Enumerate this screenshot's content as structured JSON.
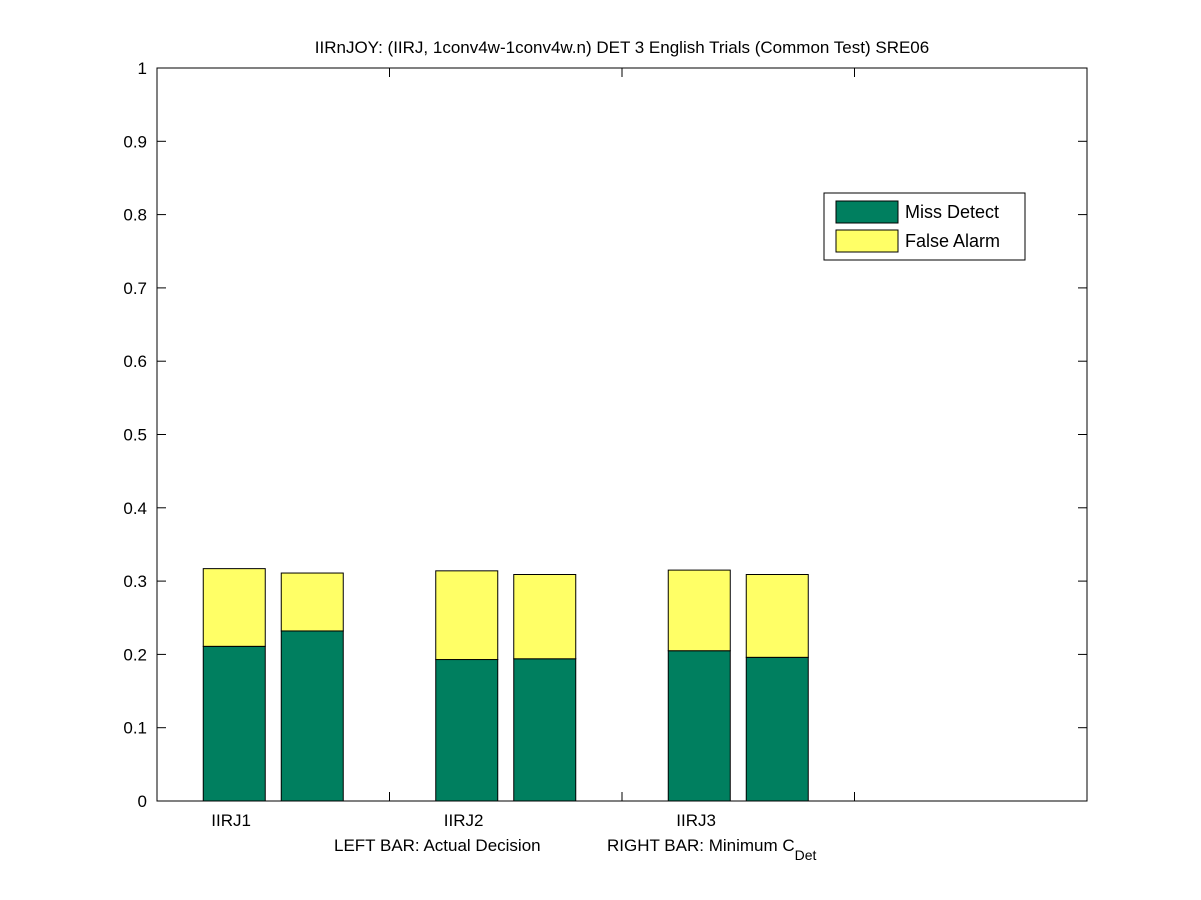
{
  "chart_data": {
    "type": "bar",
    "stacked": true,
    "title": "IIRnJOY: (IIRJ, 1conv4w-1conv4w.n) DET 3 English Trials (Common Test) SRE06",
    "xlabel": {
      "left": "LEFT BAR: Actual Decision",
      "right_prefix": "RIGHT BAR: Minimum C",
      "right_subscript": "Det"
    },
    "ylabel": "",
    "ylim": [
      0,
      1
    ],
    "yticks": [
      0,
      0.1,
      0.2,
      0.3,
      0.4,
      0.5,
      0.6,
      0.7,
      0.8,
      0.9,
      1
    ],
    "ytick_labels": [
      "0",
      "0.1",
      "0.2",
      "0.3",
      "0.4",
      "0.5",
      "0.6",
      "0.7",
      "0.8",
      "0.9",
      "1"
    ],
    "xlim": [
      0,
      4
    ],
    "groups": [
      "IIRJ1",
      "IIRJ2",
      "IIRJ3"
    ],
    "bars_per_group": [
      "Actual Decision",
      "Minimum CDet"
    ],
    "series": [
      {
        "name": "Miss Detect",
        "color": "#007F5F",
        "values": [
          [
            0.211,
            0.232
          ],
          [
            0.193,
            0.194
          ],
          [
            0.205,
            0.196
          ]
        ]
      },
      {
        "name": "False Alarm",
        "color": "#FFFF66",
        "values": [
          [
            0.106,
            0.079
          ],
          [
            0.121,
            0.115
          ],
          [
            0.11,
            0.113
          ]
        ]
      }
    ],
    "legend_position": "top-right",
    "grid": false
  }
}
